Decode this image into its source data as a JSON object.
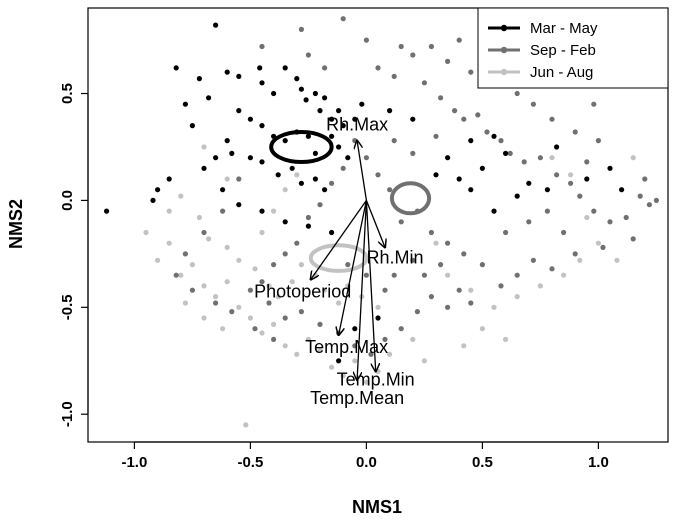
{
  "chart_data": {
    "type": "scatter",
    "xlabel": "NMS1",
    "ylabel": "NMS2",
    "xlim": [
      -1.2,
      1.3
    ],
    "ylim": [
      -1.13,
      0.9
    ],
    "xticks": [
      -1.0,
      -0.5,
      0.0,
      0.5,
      1.0
    ],
    "xtick_labels": [
      "-1.0",
      "-0.5",
      "0.0",
      "0.5",
      "1.0"
    ],
    "yticks": [
      -1.0,
      -0.5,
      0.0,
      0.5
    ],
    "ytick_labels": [
      "-1.0",
      "-0.5",
      "0.0",
      "0.5"
    ],
    "grid": false,
    "legend_position": "top-right",
    "series": [
      {
        "name": "Mar - May",
        "color": "#000000",
        "ellipse": {
          "cx": -0.28,
          "cy": 0.25,
          "rx": 0.13,
          "ry": 0.07
        },
        "points": [
          [
            -1.12,
            -0.05
          ],
          [
            -0.92,
            0.0
          ],
          [
            -0.9,
            0.05
          ],
          [
            -0.82,
            0.62
          ],
          [
            -0.72,
            0.57
          ],
          [
            -0.65,
            0.82
          ],
          [
            -0.6,
            0.6
          ],
          [
            -0.55,
            0.58
          ],
          [
            -0.46,
            0.62
          ],
          [
            -0.45,
            0.55
          ],
          [
            -0.4,
            0.5
          ],
          [
            -0.35,
            0.62
          ],
          [
            -0.3,
            0.57
          ],
          [
            -0.28,
            0.52
          ],
          [
            -0.26,
            0.47
          ],
          [
            -0.22,
            0.5
          ],
          [
            -0.2,
            0.42
          ],
          [
            -0.18,
            0.48
          ],
          [
            -0.15,
            0.38
          ],
          [
            -0.12,
            0.42
          ],
          [
            -0.1,
            0.35
          ],
          [
            -0.05,
            0.38
          ],
          [
            -0.02,
            0.45
          ],
          [
            -0.55,
            0.42
          ],
          [
            -0.5,
            0.38
          ],
          [
            -0.45,
            0.35
          ],
          [
            -0.4,
            0.3
          ],
          [
            -0.35,
            0.28
          ],
          [
            -0.3,
            0.32
          ],
          [
            -0.25,
            0.3
          ],
          [
            -0.22,
            0.22
          ],
          [
            -0.15,
            0.3
          ],
          [
            -0.12,
            0.25
          ],
          [
            -0.08,
            0.2
          ],
          [
            -0.6,
            0.28
          ],
          [
            -0.65,
            0.2
          ],
          [
            -0.7,
            0.15
          ],
          [
            -0.58,
            0.22
          ],
          [
            -0.5,
            0.2
          ],
          [
            -0.45,
            0.18
          ],
          [
            -0.38,
            0.12
          ],
          [
            -0.32,
            0.15
          ],
          [
            -0.28,
            0.08
          ],
          [
            -0.22,
            0.1
          ],
          [
            -0.18,
            0.05
          ],
          [
            -0.85,
            0.1
          ],
          [
            -0.75,
            0.35
          ],
          [
            -0.78,
            0.45
          ],
          [
            -0.68,
            0.48
          ],
          [
            -0.62,
            0.05
          ],
          [
            -0.55,
            -0.02
          ],
          [
            -0.45,
            -0.05
          ],
          [
            -0.35,
            -0.1
          ],
          [
            -0.25,
            -0.12
          ],
          [
            -0.15,
            -0.15
          ],
          [
            -0.12,
            -0.75
          ],
          [
            -0.05,
            -0.6
          ],
          [
            0.05,
            -0.55
          ],
          [
            0.3,
            0.12
          ],
          [
            0.35,
            0.2
          ],
          [
            0.45,
            0.28
          ],
          [
            0.55,
            0.3
          ],
          [
            0.5,
            0.15
          ],
          [
            0.6,
            0.22
          ],
          [
            0.7,
            0.08
          ],
          [
            0.78,
            0.05
          ],
          [
            0.82,
            0.25
          ],
          [
            1.05,
            0.15
          ],
          [
            1.1,
            0.05
          ],
          [
            0.95,
            0.1
          ],
          [
            0.65,
            0.02
          ],
          [
            0.55,
            -0.05
          ],
          [
            0.45,
            0.05
          ],
          [
            0.4,
            0.1
          ],
          [
            0.2,
            0.38
          ],
          [
            0.1,
            0.42
          ]
        ]
      },
      {
        "name": "Sep - Feb",
        "color": "#707070",
        "ellipse": {
          "cx": 0.19,
          "cy": 0.01,
          "rx": 0.08,
          "ry": 0.07
        },
        "points": [
          [
            -0.28,
            0.8
          ],
          [
            -0.1,
            0.85
          ],
          [
            0.0,
            0.75
          ],
          [
            0.05,
            0.62
          ],
          [
            0.12,
            0.58
          ],
          [
            0.2,
            0.68
          ],
          [
            0.25,
            0.55
          ],
          [
            0.32,
            0.48
          ],
          [
            0.38,
            0.42
          ],
          [
            0.42,
            0.38
          ],
          [
            0.48,
            0.4
          ],
          [
            0.52,
            0.32
          ],
          [
            0.58,
            0.28
          ],
          [
            0.62,
            0.22
          ],
          [
            0.68,
            0.18
          ],
          [
            0.75,
            0.2
          ],
          [
            0.82,
            0.12
          ],
          [
            0.88,
            0.08
          ],
          [
            0.92,
            0.02
          ],
          [
            0.98,
            -0.05
          ],
          [
            1.05,
            -0.1
          ],
          [
            1.12,
            -0.08
          ],
          [
            1.18,
            0.02
          ],
          [
            1.22,
            -0.02
          ],
          [
            1.15,
            -0.18
          ],
          [
            1.02,
            -0.22
          ],
          [
            0.9,
            -0.25
          ],
          [
            0.8,
            -0.32
          ],
          [
            0.72,
            -0.28
          ],
          [
            0.65,
            -0.35
          ],
          [
            0.58,
            -0.4
          ],
          [
            0.5,
            -0.3
          ],
          [
            0.42,
            -0.25
          ],
          [
            0.35,
            -0.2
          ],
          [
            0.28,
            -0.15
          ],
          [
            0.22,
            -0.05
          ],
          [
            0.15,
            -0.1
          ],
          [
            0.1,
            0.05
          ],
          [
            0.05,
            0.12
          ],
          [
            0.0,
            0.2
          ],
          [
            -0.05,
            0.28
          ],
          [
            -0.1,
            0.15
          ],
          [
            -0.15,
            0.08
          ],
          [
            -0.2,
            -0.02
          ],
          [
            -0.25,
            -0.08
          ],
          [
            -0.3,
            -0.2
          ],
          [
            -0.35,
            -0.25
          ],
          [
            -0.4,
            -0.3
          ],
          [
            -0.45,
            -0.38
          ],
          [
            -0.5,
            -0.42
          ],
          [
            -0.42,
            -0.48
          ],
          [
            -0.35,
            -0.55
          ],
          [
            -0.28,
            -0.52
          ],
          [
            -0.2,
            -0.58
          ],
          [
            -0.12,
            -0.62
          ],
          [
            -0.05,
            -0.68
          ],
          [
            0.02,
            -0.72
          ],
          [
            0.08,
            -0.65
          ],
          [
            0.15,
            -0.6
          ],
          [
            0.22,
            -0.52
          ],
          [
            0.28,
            -0.45
          ],
          [
            0.35,
            -0.5
          ],
          [
            0.4,
            -0.42
          ],
          [
            0.45,
            -0.48
          ],
          [
            0.6,
            -0.15
          ],
          [
            0.7,
            -0.1
          ],
          [
            0.78,
            -0.05
          ],
          [
            0.85,
            -0.15
          ],
          [
            0.95,
            0.18
          ],
          [
            1.0,
            0.28
          ],
          [
            0.9,
            0.32
          ],
          [
            0.8,
            0.38
          ],
          [
            0.72,
            0.45
          ],
          [
            0.65,
            0.5
          ],
          [
            0.55,
            0.55
          ],
          [
            0.45,
            0.6
          ],
          [
            0.35,
            0.65
          ],
          [
            0.28,
            0.72
          ],
          [
            -0.55,
            0.1
          ],
          [
            -0.62,
            -0.05
          ],
          [
            -0.7,
            -0.15
          ],
          [
            -0.78,
            -0.25
          ],
          [
            -0.82,
            -0.35
          ],
          [
            -0.75,
            -0.42
          ],
          [
            -0.65,
            -0.48
          ],
          [
            -0.58,
            -0.52
          ],
          [
            -0.48,
            -0.6
          ],
          [
            -0.4,
            -0.65
          ],
          [
            0.12,
            -0.35
          ],
          [
            0.2,
            -0.28
          ],
          [
            0.25,
            -0.35
          ],
          [
            0.32,
            -0.3
          ],
          [
            0.08,
            -0.42
          ],
          [
            0.0,
            -0.35
          ],
          [
            -0.08,
            -0.3
          ],
          [
            1.2,
            0.1
          ],
          [
            1.25,
            0.0
          ],
          [
            0.98,
            0.45
          ],
          [
            0.7,
            0.58
          ],
          [
            0.5,
            0.68
          ],
          [
            0.4,
            0.75
          ],
          [
            0.15,
            0.72
          ],
          [
            -0.45,
            0.72
          ],
          [
            0.3,
            0.3
          ],
          [
            0.2,
            0.22
          ],
          [
            0.12,
            0.28
          ],
          [
            -0.18,
            0.62
          ],
          [
            -0.25,
            0.68
          ]
        ]
      },
      {
        "name": "Jun - Aug",
        "color": "#c2c2c2",
        "ellipse": {
          "cx": -0.12,
          "cy": -0.27,
          "rx": 0.12,
          "ry": 0.06
        },
        "points": [
          [
            -0.95,
            -0.15
          ],
          [
            -0.9,
            -0.28
          ],
          [
            -0.85,
            -0.2
          ],
          [
            -0.8,
            -0.35
          ],
          [
            -0.75,
            -0.3
          ],
          [
            -0.7,
            -0.4
          ],
          [
            -0.65,
            -0.45
          ],
          [
            -0.6,
            -0.38
          ],
          [
            -0.55,
            -0.5
          ],
          [
            -0.5,
            -0.55
          ],
          [
            -0.45,
            -0.62
          ],
          [
            -0.4,
            -0.58
          ],
          [
            -0.35,
            -0.68
          ],
          [
            -0.3,
            -0.72
          ],
          [
            -0.25,
            -0.65
          ],
          [
            -0.2,
            -0.7
          ],
          [
            -0.15,
            -0.78
          ],
          [
            -0.1,
            -0.82
          ],
          [
            -0.05,
            -0.75
          ],
          [
            0.0,
            -0.85
          ],
          [
            0.05,
            -0.8
          ],
          [
            0.1,
            -0.72
          ],
          [
            -0.52,
            -1.05
          ],
          [
            -0.85,
            -0.05
          ],
          [
            -0.8,
            0.02
          ],
          [
            -0.72,
            -0.08
          ],
          [
            -0.68,
            -0.18
          ],
          [
            -0.6,
            -0.22
          ],
          [
            -0.55,
            -0.28
          ],
          [
            -0.48,
            -0.32
          ],
          [
            -0.42,
            -0.4
          ],
          [
            -0.38,
            -0.45
          ],
          [
            -0.32,
            -0.38
          ],
          [
            -0.28,
            -0.3
          ],
          [
            -0.22,
            -0.35
          ],
          [
            -0.18,
            -0.42
          ],
          [
            -0.12,
            -0.48
          ],
          [
            -0.08,
            -0.4
          ],
          [
            -0.02,
            -0.45
          ],
          [
            0.05,
            -0.5
          ],
          [
            -0.45,
            -0.15
          ],
          [
            -0.4,
            -0.05
          ],
          [
            -0.35,
            0.05
          ],
          [
            -0.3,
            0.12
          ],
          [
            -0.6,
            0.1
          ],
          [
            -0.7,
            0.25
          ],
          [
            0.3,
            -0.2
          ],
          [
            0.35,
            -0.35
          ],
          [
            0.45,
            -0.42
          ],
          [
            0.55,
            -0.5
          ],
          [
            0.65,
            -0.45
          ],
          [
            0.75,
            -0.4
          ],
          [
            0.85,
            -0.35
          ],
          [
            0.92,
            -0.28
          ],
          [
            1.0,
            -0.2
          ],
          [
            1.08,
            -0.28
          ],
          [
            0.5,
            -0.6
          ],
          [
            0.42,
            -0.68
          ],
          [
            0.6,
            -0.65
          ],
          [
            0.88,
            0.12
          ],
          [
            0.95,
            -0.08
          ],
          [
            1.15,
            0.2
          ],
          [
            0.8,
            0.2
          ],
          [
            0.2,
            -0.65
          ],
          [
            0.25,
            -0.75
          ],
          [
            -0.62,
            -0.6
          ],
          [
            -0.7,
            -0.55
          ],
          [
            -0.78,
            -0.48
          ]
        ]
      }
    ],
    "vectors": {
      "origin": [
        0.0,
        0.0
      ],
      "items": [
        {
          "label": "Rh.Max",
          "x": -0.04,
          "y": 0.28
        },
        {
          "label": "Rh.Min",
          "x": 0.08,
          "y": -0.22
        },
        {
          "label": "Photoperiod",
          "x": -0.24,
          "y": -0.37
        },
        {
          "label": "Temp.Max",
          "x": -0.12,
          "y": -0.63
        },
        {
          "label": "Temp.Min",
          "x": 0.04,
          "y": -0.8
        },
        {
          "label": "Temp.Mean",
          "x": -0.04,
          "y": -0.84
        }
      ]
    }
  }
}
